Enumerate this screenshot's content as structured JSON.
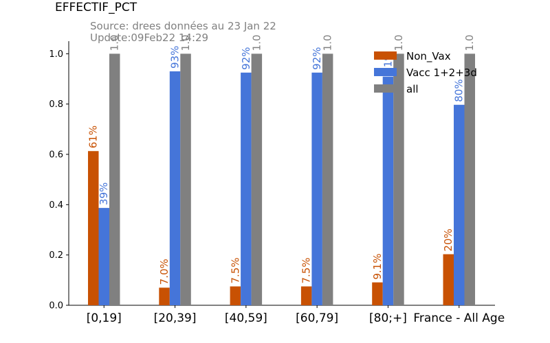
{
  "chart_data": {
    "type": "bar",
    "title": "EFFECTIF_PCT",
    "subtitle_source": "Source: drees données au 23 Jan 22",
    "subtitle_update": "Update:09Feb22 14:29",
    "categories": [
      "[0,19]",
      "[20,39]",
      "[40,59]",
      "[60,79]",
      "[80;+]",
      "France - All Age"
    ],
    "ylim": [
      0,
      1.05
    ],
    "yticks": [
      "0.0",
      "0.2",
      "0.4",
      "0.6",
      "0.8",
      "1.0"
    ],
    "legend_position": "top-right",
    "series": [
      {
        "name": "Non_Vax",
        "color": "#c85103",
        "values": [
          0.613,
          0.07,
          0.075,
          0.075,
          0.091,
          0.203
        ],
        "labels": [
          "61%",
          "7.0%",
          "7.5%",
          "7.5%",
          "9.1%",
          "20%"
        ]
      },
      {
        "name": "Vacc 1+2+3d",
        "color": "#4575d9",
        "values": [
          0.387,
          0.93,
          0.925,
          0.925,
          0.909,
          0.797
        ],
        "labels": [
          "39%",
          "93%",
          "92%",
          "92%",
          "91%",
          "80%"
        ]
      },
      {
        "name": "all",
        "color": "#808080",
        "values": [
          1.0,
          1.0,
          1.0,
          1.0,
          1.0,
          1.0
        ],
        "labels": [
          "1.0",
          "1.0",
          "1.0",
          "1.0",
          "1.0",
          "1.0"
        ]
      }
    ]
  }
}
